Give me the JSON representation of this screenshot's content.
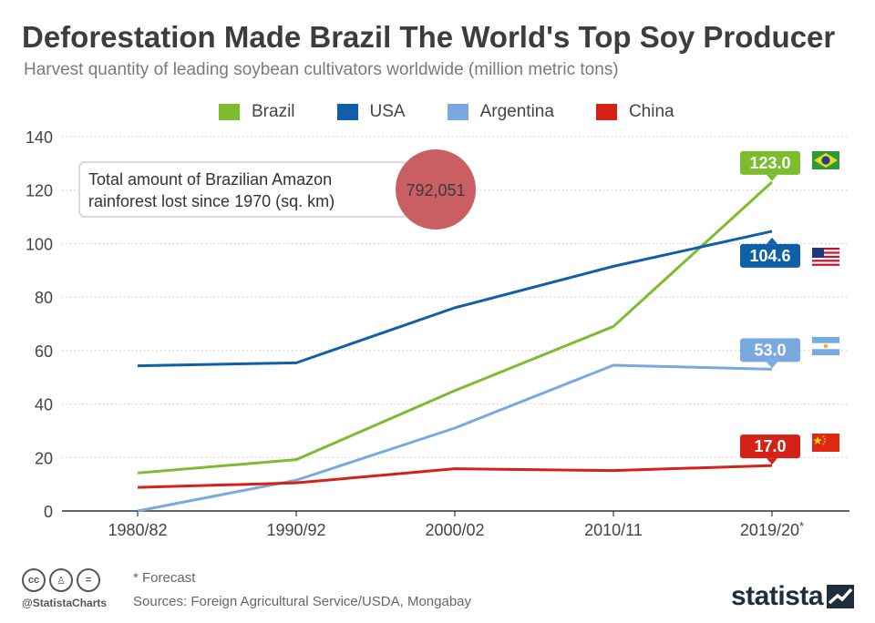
{
  "header": {
    "title": "Deforestation Made Brazil The World's Top Soy Producer",
    "subtitle": "Harvest quantity of leading soybean cultivators worldwide (million metric tons)"
  },
  "legend": [
    {
      "name": "Brazil",
      "color": "#7dbb2f"
    },
    {
      "name": "USA",
      "color": "#1060a8"
    },
    {
      "name": "Argentina",
      "color": "#7aa9df"
    },
    {
      "name": "China",
      "color": "#d42218"
    }
  ],
  "callout": {
    "text_line1": "Total amount of Brazilian Amazon",
    "text_line2": "rainforest lost since 1970 (sq. km)",
    "value": "792,051",
    "bubble_color": "#c95f63"
  },
  "chart_data": {
    "type": "line",
    "title": "Deforestation Made Brazil The World's Top Soy Producer",
    "subtitle": "Harvest quantity of leading soybean cultivators worldwide (million metric tons)",
    "categories": [
      "1980/82",
      "1990/92",
      "2000/02",
      "2010/11",
      "2019/20*"
    ],
    "ylim": [
      0,
      140
    ],
    "yticks": [
      0,
      20,
      40,
      60,
      80,
      100,
      120,
      140
    ],
    "grid": true,
    "legend_position": "top",
    "series": [
      {
        "name": "Brazil",
        "color": "#7dbb2f",
        "values": [
          14.2,
          19.2,
          45.0,
          69.0,
          123.0
        ],
        "end_label": "123.0",
        "flag": "brazil-flag-icon"
      },
      {
        "name": "USA",
        "color": "#1060a8",
        "values": [
          54.3,
          55.4,
          76.0,
          91.5,
          104.6
        ],
        "end_label": "104.6",
        "flag": "usa-flag-icon"
      },
      {
        "name": "Argentina",
        "color": "#7aa9df",
        "values": [
          0.0,
          11.5,
          31.0,
          54.5,
          53.0
        ],
        "end_label": "53.0",
        "flag": "argentina-flag-icon"
      },
      {
        "name": "China",
        "color": "#d42218",
        "values": [
          8.8,
          10.5,
          15.8,
          15.1,
          17.0
        ],
        "end_label": "17.0",
        "flag": "china-flag-icon"
      }
    ]
  },
  "footer": {
    "note": "* Forecast",
    "sources": "Sources: Foreign Agricultural Service/USDA, Mongabay",
    "handle": "@StatistaCharts",
    "brand": "statista"
  }
}
